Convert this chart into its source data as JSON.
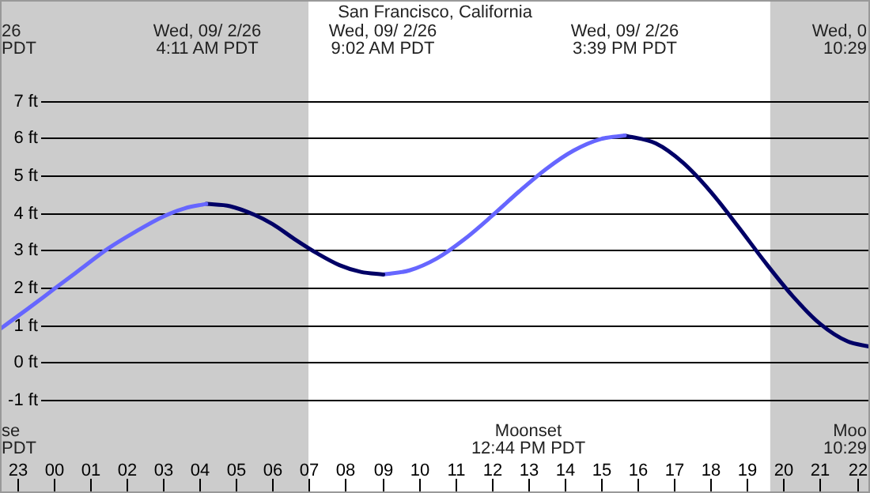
{
  "chart_data": {
    "type": "line",
    "title": "San Francisco, California",
    "xlim": [
      "--09-01T22:32",
      "--09-02T22:22"
    ],
    "xticks": [
      {
        "value": "--09-01T23:00",
        "label": "23"
      },
      {
        "value": "--09-02T00:00",
        "label": "00"
      },
      {
        "value": "--09-02T01:00",
        "label": "01"
      },
      {
        "value": "--09-02T02:00",
        "label": "02"
      },
      {
        "value": "--09-02T03:00",
        "label": "03"
      },
      {
        "value": "--09-02T04:00",
        "label": "04"
      },
      {
        "value": "--09-02T05:00",
        "label": "05"
      },
      {
        "value": "--09-02T06:00",
        "label": "06"
      },
      {
        "value": "--09-02T07:00",
        "label": "07"
      },
      {
        "value": "--09-02T08:00",
        "label": "08"
      },
      {
        "value": "--09-02T09:00",
        "label": "09"
      },
      {
        "value": "--09-02T10:00",
        "label": "10"
      },
      {
        "value": "--09-02T11:00",
        "label": "11"
      },
      {
        "value": "--09-02T12:00",
        "label": "12"
      },
      {
        "value": "--09-02T13:00",
        "label": "13"
      },
      {
        "value": "--09-02T14:00",
        "label": "14"
      },
      {
        "value": "--09-02T15:00",
        "label": "15"
      },
      {
        "value": "--09-02T16:00",
        "label": "16"
      },
      {
        "value": "--09-02T17:00",
        "label": "17"
      },
      {
        "value": "--09-02T18:00",
        "label": "18"
      },
      {
        "value": "--09-02T19:00",
        "label": "19"
      },
      {
        "value": "--09-02T20:00",
        "label": "20"
      },
      {
        "value": "--09-02T21:00",
        "label": "21"
      },
      {
        "value": "--09-02T22:00",
        "label": "22"
      }
    ],
    "ylim": [
      -3.5,
      9.7
    ],
    "yticks": [
      {
        "value": -1,
        "label": "-1 ft"
      },
      {
        "value": 0,
        "label": "0 ft"
      },
      {
        "value": 1,
        "label": "1 ft"
      },
      {
        "value": 2,
        "label": "2 ft"
      },
      {
        "value": 3,
        "label": "3 ft"
      },
      {
        "value": 4,
        "label": "4 ft"
      },
      {
        "value": 5,
        "label": "5 ft"
      },
      {
        "value": 6,
        "label": "6 ft"
      },
      {
        "value": 7,
        "label": "7 ft"
      }
    ],
    "grid": "y",
    "marker": "none",
    "line_style": "solid",
    "series": [
      {
        "color": "#6666ff",
        "x": [
          "--09-01T22:32",
          "--09-01T23:15",
          "--09-02T00:00",
          "--09-02T00:45",
          "--09-02T01:30",
          "--09-02T02:15",
          "--09-02T03:00",
          "--09-02T03:35",
          "--09-02T04:11"
        ],
        "values": [
          0.89,
          1.4,
          1.95,
          2.5,
          3.05,
          3.5,
          3.9,
          4.12,
          4.24
        ]
      },
      {
        "color": "#000066",
        "x": [
          "--09-02T04:11",
          "--09-02T04:50",
          "--09-02T05:30",
          "--09-02T06:00",
          "--09-02T06:36",
          "--09-02T07:15",
          "--09-02T07:50",
          "--09-02T08:25",
          "--09-02T09:02"
        ],
        "values": [
          4.24,
          4.18,
          3.95,
          3.7,
          3.3,
          2.9,
          2.6,
          2.42,
          2.35
        ]
      },
      {
        "color": "#6666ff",
        "x": [
          "--09-02T09:02",
          "--09-02T09:45",
          "--09-02T10:30",
          "--09-02T11:15",
          "--09-02T12:00",
          "--09-02T12:45",
          "--09-02T13:30",
          "--09-02T14:15",
          "--09-02T15:00",
          "--09-02T15:39"
        ],
        "values": [
          2.35,
          2.46,
          2.78,
          3.29,
          3.91,
          4.57,
          5.18,
          5.67,
          5.98,
          6.07
        ]
      },
      {
        "color": "#000066",
        "x": [
          "--09-02T15:39",
          "--09-02T16:30",
          "--09-02T17:15",
          "--09-02T18:00",
          "--09-02T18:45",
          "--09-02T19:30",
          "--09-02T20:15",
          "--09-02T21:00",
          "--09-02T21:45",
          "--09-02T22:22"
        ],
        "values": [
          6.07,
          5.86,
          5.34,
          4.57,
          3.64,
          2.67,
          1.77,
          1.03,
          0.56,
          0.42
        ]
      }
    ],
    "bands": [
      {
        "axis": "x",
        "from": "--09-01T22:32",
        "to": "--09-02T06:59",
        "color": "#cccccc"
      },
      {
        "axis": "x",
        "from": "--09-02T19:38",
        "to": "--09-02T22:22",
        "color": "#cccccc"
      }
    ],
    "annotations": [
      "26\nPDT",
      "Wed, 09/ 2/26\n4:11 AM PDT",
      "Wed, 09/ 2/26\n9:02 AM PDT",
      "Wed, 09/ 2/26\n3:39 PM PDT",
      "Wed, 0\n10:29",
      "se\nPDT",
      "Moonset\n12:44 PM PDT",
      "Moo\n10:29"
    ]
  }
}
